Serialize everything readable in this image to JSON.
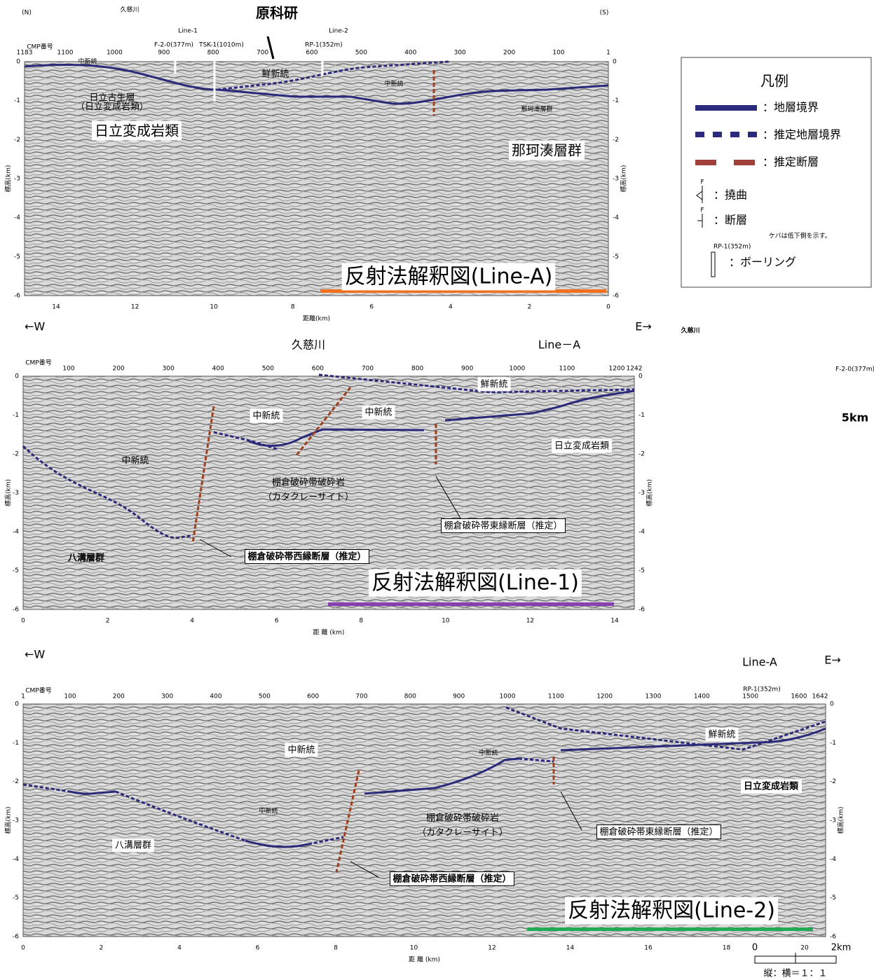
{
  "header": {
    "north": "(N)",
    "south": "(S)",
    "site": "原科研"
  },
  "legend": {
    "title": "凡例",
    "items": [
      "：地層境界",
      "：推定地層境界",
      "：推定断層",
      "：撓曲",
      "：断層",
      "ケバは低下側を示す。",
      "RP-1(352m)",
      "：ボーリング"
    ],
    "symbol": "F"
  },
  "panels": [
    {
      "title": "反射法解釈図(Line-A)",
      "cmp_label": "CMP番号",
      "cmp_ticks": [
        "1183",
        "1100",
        "1000",
        "900",
        "800",
        "700",
        "600",
        "500",
        "400",
        "300",
        "200",
        "100",
        "1"
      ],
      "depth_ticks": [
        "0",
        "-1",
        "-2",
        "-3",
        "-4",
        "-5",
        "-6"
      ],
      "distance_ticks": [
        "14",
        "12",
        "10",
        "8",
        "6",
        "4",
        "2",
        "0"
      ],
      "distance_label": "距離(km)",
      "depth_label": "標高(km)",
      "top_labels": [
        "Line-1",
        "F-2-0(377m)",
        "TSK-1(1010m)",
        "RP-1(352m)",
        "Line-2",
        "久慈川"
      ],
      "labels": [
        "中新統",
        "鮮新統",
        "中新統",
        "日立古生層",
        "（日立変成岩類）",
        "日立変成岩類",
        "那珂湊層群",
        "那珂湊層群"
      ]
    },
    {
      "title": "反射法解釈図(Line-1)",
      "west": "←W",
      "east": "E→",
      "cmp_label": "CMP番号",
      "cmp_ticks": [
        "100",
        "200",
        "300",
        "400",
        "500",
        "600",
        "700",
        "800",
        "900",
        "1000",
        "1100",
        "1200",
        "1242"
      ],
      "depth_ticks": [
        "0",
        "-1",
        "-2",
        "-3",
        "-4",
        "-5",
        "-6"
      ],
      "distance_ticks": [
        "0",
        "2",
        "4",
        "6",
        "8",
        "10",
        "12",
        "14"
      ],
      "distance_label": "距 離 (km)",
      "depth_label": "標高(km)",
      "top_labels": [
        "久慈川",
        "Line－A",
        "F-2-0(377m)",
        "久慈川",
        "5km"
      ],
      "labels": [
        "鮮新統",
        "中新統",
        "中新統",
        "日立変成岩類",
        "中新統",
        "棚倉破砕帯破砕岩",
        "（カタクレーサイト）",
        "棚倉破砕帯東縁断層（推定）",
        "八溝層群",
        "棚倉破砕帯西縁断層（推定）"
      ]
    },
    {
      "title": "反射法解釈図(Line-2)",
      "west": "←W",
      "east": "E→",
      "cmp_label": "CMP番号",
      "cmp_ticks": [
        "1",
        "100",
        "200",
        "300",
        "400",
        "500",
        "600",
        "700",
        "800",
        "900",
        "1000",
        "1100",
        "1200",
        "1300",
        "1400",
        "1500",
        "1600",
        "1642"
      ],
      "depth_ticks": [
        "0",
        "-1",
        "-2",
        "-3",
        "-4",
        "-5",
        "-6"
      ],
      "distance_ticks": [
        "0",
        "2",
        "4",
        "6",
        "8",
        "10",
        "12",
        "14",
        "16",
        "18",
        "20"
      ],
      "distance_label": "距 離 (km)",
      "depth_label": "標高(km)",
      "top_labels": [
        "Line-A",
        "RP-1(352m)"
      ],
      "labels": [
        "鮮新統",
        "中新統",
        "中新統",
        "日立変成岩類",
        "中新統",
        "棚倉破砕帯破砕岩",
        "（カタクレーサイト）",
        "棚倉破砕帯東縁断層（推定）",
        "八溝層群",
        "棚倉破砕帯西縁断層（推定）"
      ]
    }
  ],
  "scale": {
    "zero": "0",
    "end": "2km",
    "ratio": "縦：横＝１：１"
  }
}
